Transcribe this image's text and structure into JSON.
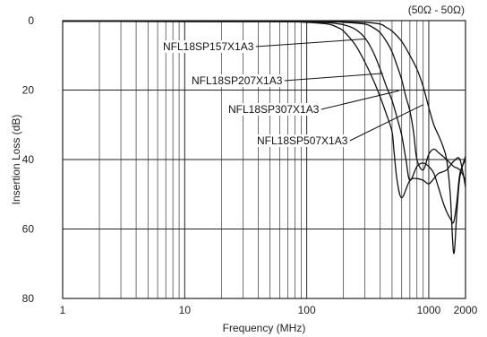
{
  "chart_data": {
    "type": "line",
    "xlabel": "Frequency (MHz)",
    "ylabel": "Insertion Loss (dB)",
    "x_scale": "log",
    "xlim": [
      1,
      2000
    ],
    "ylim": [
      0,
      80
    ],
    "y_inverted": true,
    "grid": true,
    "x_ticks": [
      1,
      10,
      100,
      1000,
      2000
    ],
    "x_tick_labels": [
      "1",
      "10",
      "100",
      "1000",
      "2000"
    ],
    "y_ticks": [
      0,
      20,
      40,
      60,
      80
    ],
    "y_tick_labels": [
      "0",
      "20",
      "40",
      "60",
      "80"
    ],
    "annotation": "(50Ω - 50Ω)",
    "series": [
      {
        "name": "NFL18SP157X1A3",
        "x": [
          1,
          50,
          100,
          150,
          180,
          200,
          250,
          300,
          350,
          400,
          450,
          500,
          520,
          550,
          600,
          700,
          800,
          900,
          1000,
          1100,
          1200,
          1400,
          1600,
          1800,
          2000
        ],
        "y": [
          0.2,
          0.3,
          0.5,
          1.0,
          2.0,
          3.0,
          7.0,
          12.0,
          17.0,
          22.0,
          27.0,
          32.0,
          38.0,
          46.0,
          51.0,
          46.0,
          45.5,
          46.0,
          47.0,
          45.5,
          44.0,
          43.0,
          40.5,
          40.0,
          48.0
        ]
      },
      {
        "name": "NFL18SP207X1A3",
        "x": [
          1,
          50,
          100,
          150,
          200,
          250,
          300,
          350,
          400,
          450,
          500,
          550,
          600,
          650,
          700,
          800,
          900,
          1000,
          1100,
          1200,
          1300,
          1400,
          1500,
          1600,
          1700,
          1800,
          2000
        ],
        "y": [
          0.2,
          0.3,
          0.4,
          0.6,
          1.2,
          2.5,
          5.0,
          9.0,
          14.0,
          19.0,
          23.0,
          28.0,
          33.0,
          40.0,
          46.0,
          42.0,
          41.0,
          42.0,
          44.0,
          48.0,
          52.0,
          55.0,
          57.0,
          58.0,
          52.0,
          44.0,
          40.0
        ]
      },
      {
        "name": "NFL18SP307X1A3",
        "x": [
          1,
          100,
          200,
          300,
          350,
          400,
          450,
          500,
          550,
          600,
          650,
          700,
          750,
          800,
          900,
          1000,
          1100,
          1200,
          1400,
          1600,
          1800,
          2000
        ],
        "y": [
          0.2,
          0.3,
          0.5,
          1.0,
          2.0,
          3.5,
          6.0,
          9.0,
          13.0,
          17.0,
          22.0,
          26.0,
          32.0,
          40.0,
          43.0,
          38.5,
          37.0,
          38.0,
          40.0,
          42.0,
          43.0,
          46.0
        ]
      },
      {
        "name": "NFL18SP507X1A3",
        "x": [
          1,
          100,
          200,
          300,
          400,
          450,
          500,
          600,
          700,
          800,
          900,
          1000,
          1100,
          1200,
          1300,
          1400,
          1500,
          1600,
          1700,
          1800,
          2000
        ],
        "y": [
          0.2,
          0.2,
          0.3,
          0.5,
          1.0,
          2.0,
          3.0,
          6.0,
          10.0,
          14.0,
          19.0,
          25.0,
          30.0,
          33.0,
          36.0,
          40.0,
          50.0,
          67.0,
          55.0,
          45.0,
          39.0
        ]
      }
    ],
    "labels": [
      {
        "series": "NFL18SP157X1A3",
        "text": "NFL18SP157X1A3",
        "at_x": 300,
        "at_y": 5.3
      },
      {
        "series": "NFL18SP207X1A3",
        "text": "NFL18SP207X1A3",
        "at_x": 420,
        "at_y": 15.2
      },
      {
        "series": "NFL18SP307X1A3",
        "text": "NFL18SP307X1A3",
        "at_x": 570,
        "at_y": 20.2
      },
      {
        "series": "NFL18SP507X1A3",
        "text": "NFL18SP507X1A3",
        "at_x": 900,
        "at_y": 24.2
      }
    ]
  }
}
